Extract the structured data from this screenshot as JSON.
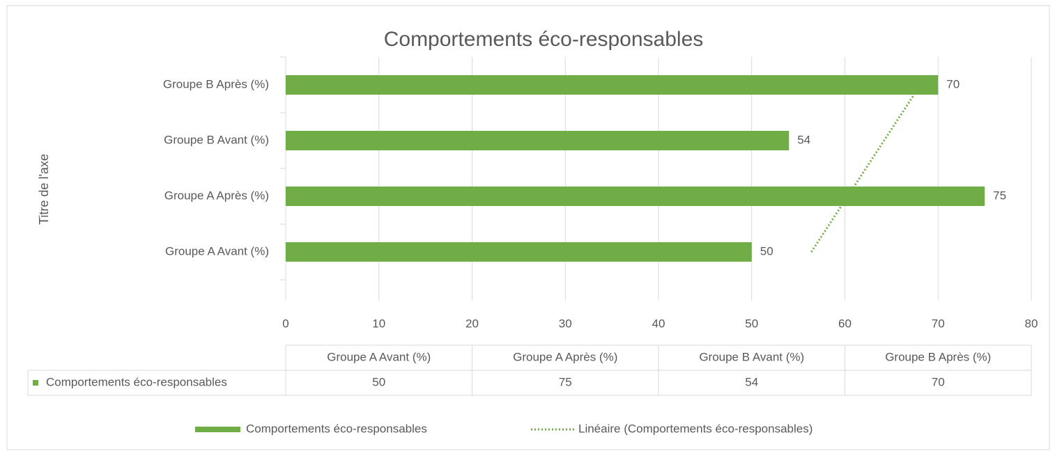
{
  "chart_data": {
    "type": "bar",
    "orientation": "horizontal",
    "title": "Comportements éco-responsables",
    "y_axis_label": "Titre de l'axe",
    "categories": [
      "Groupe A Avant (%)",
      "Groupe A Après (%)",
      "Groupe B Avant (%)",
      "Groupe B Après (%)"
    ],
    "series": [
      {
        "name": "Comportements éco-responsables",
        "color": "#70ad47",
        "values": [
          50,
          75,
          54,
          70
        ]
      }
    ],
    "trendline": {
      "name": "Linéaire (Comportements éco-responsables)",
      "type": "linear",
      "color": "#70ad47"
    },
    "xlim": [
      0,
      80
    ],
    "xticks": [
      0,
      10,
      20,
      30,
      40,
      50,
      60,
      70,
      80
    ],
    "grid": true,
    "legend": "bottom",
    "data_table": true
  }
}
